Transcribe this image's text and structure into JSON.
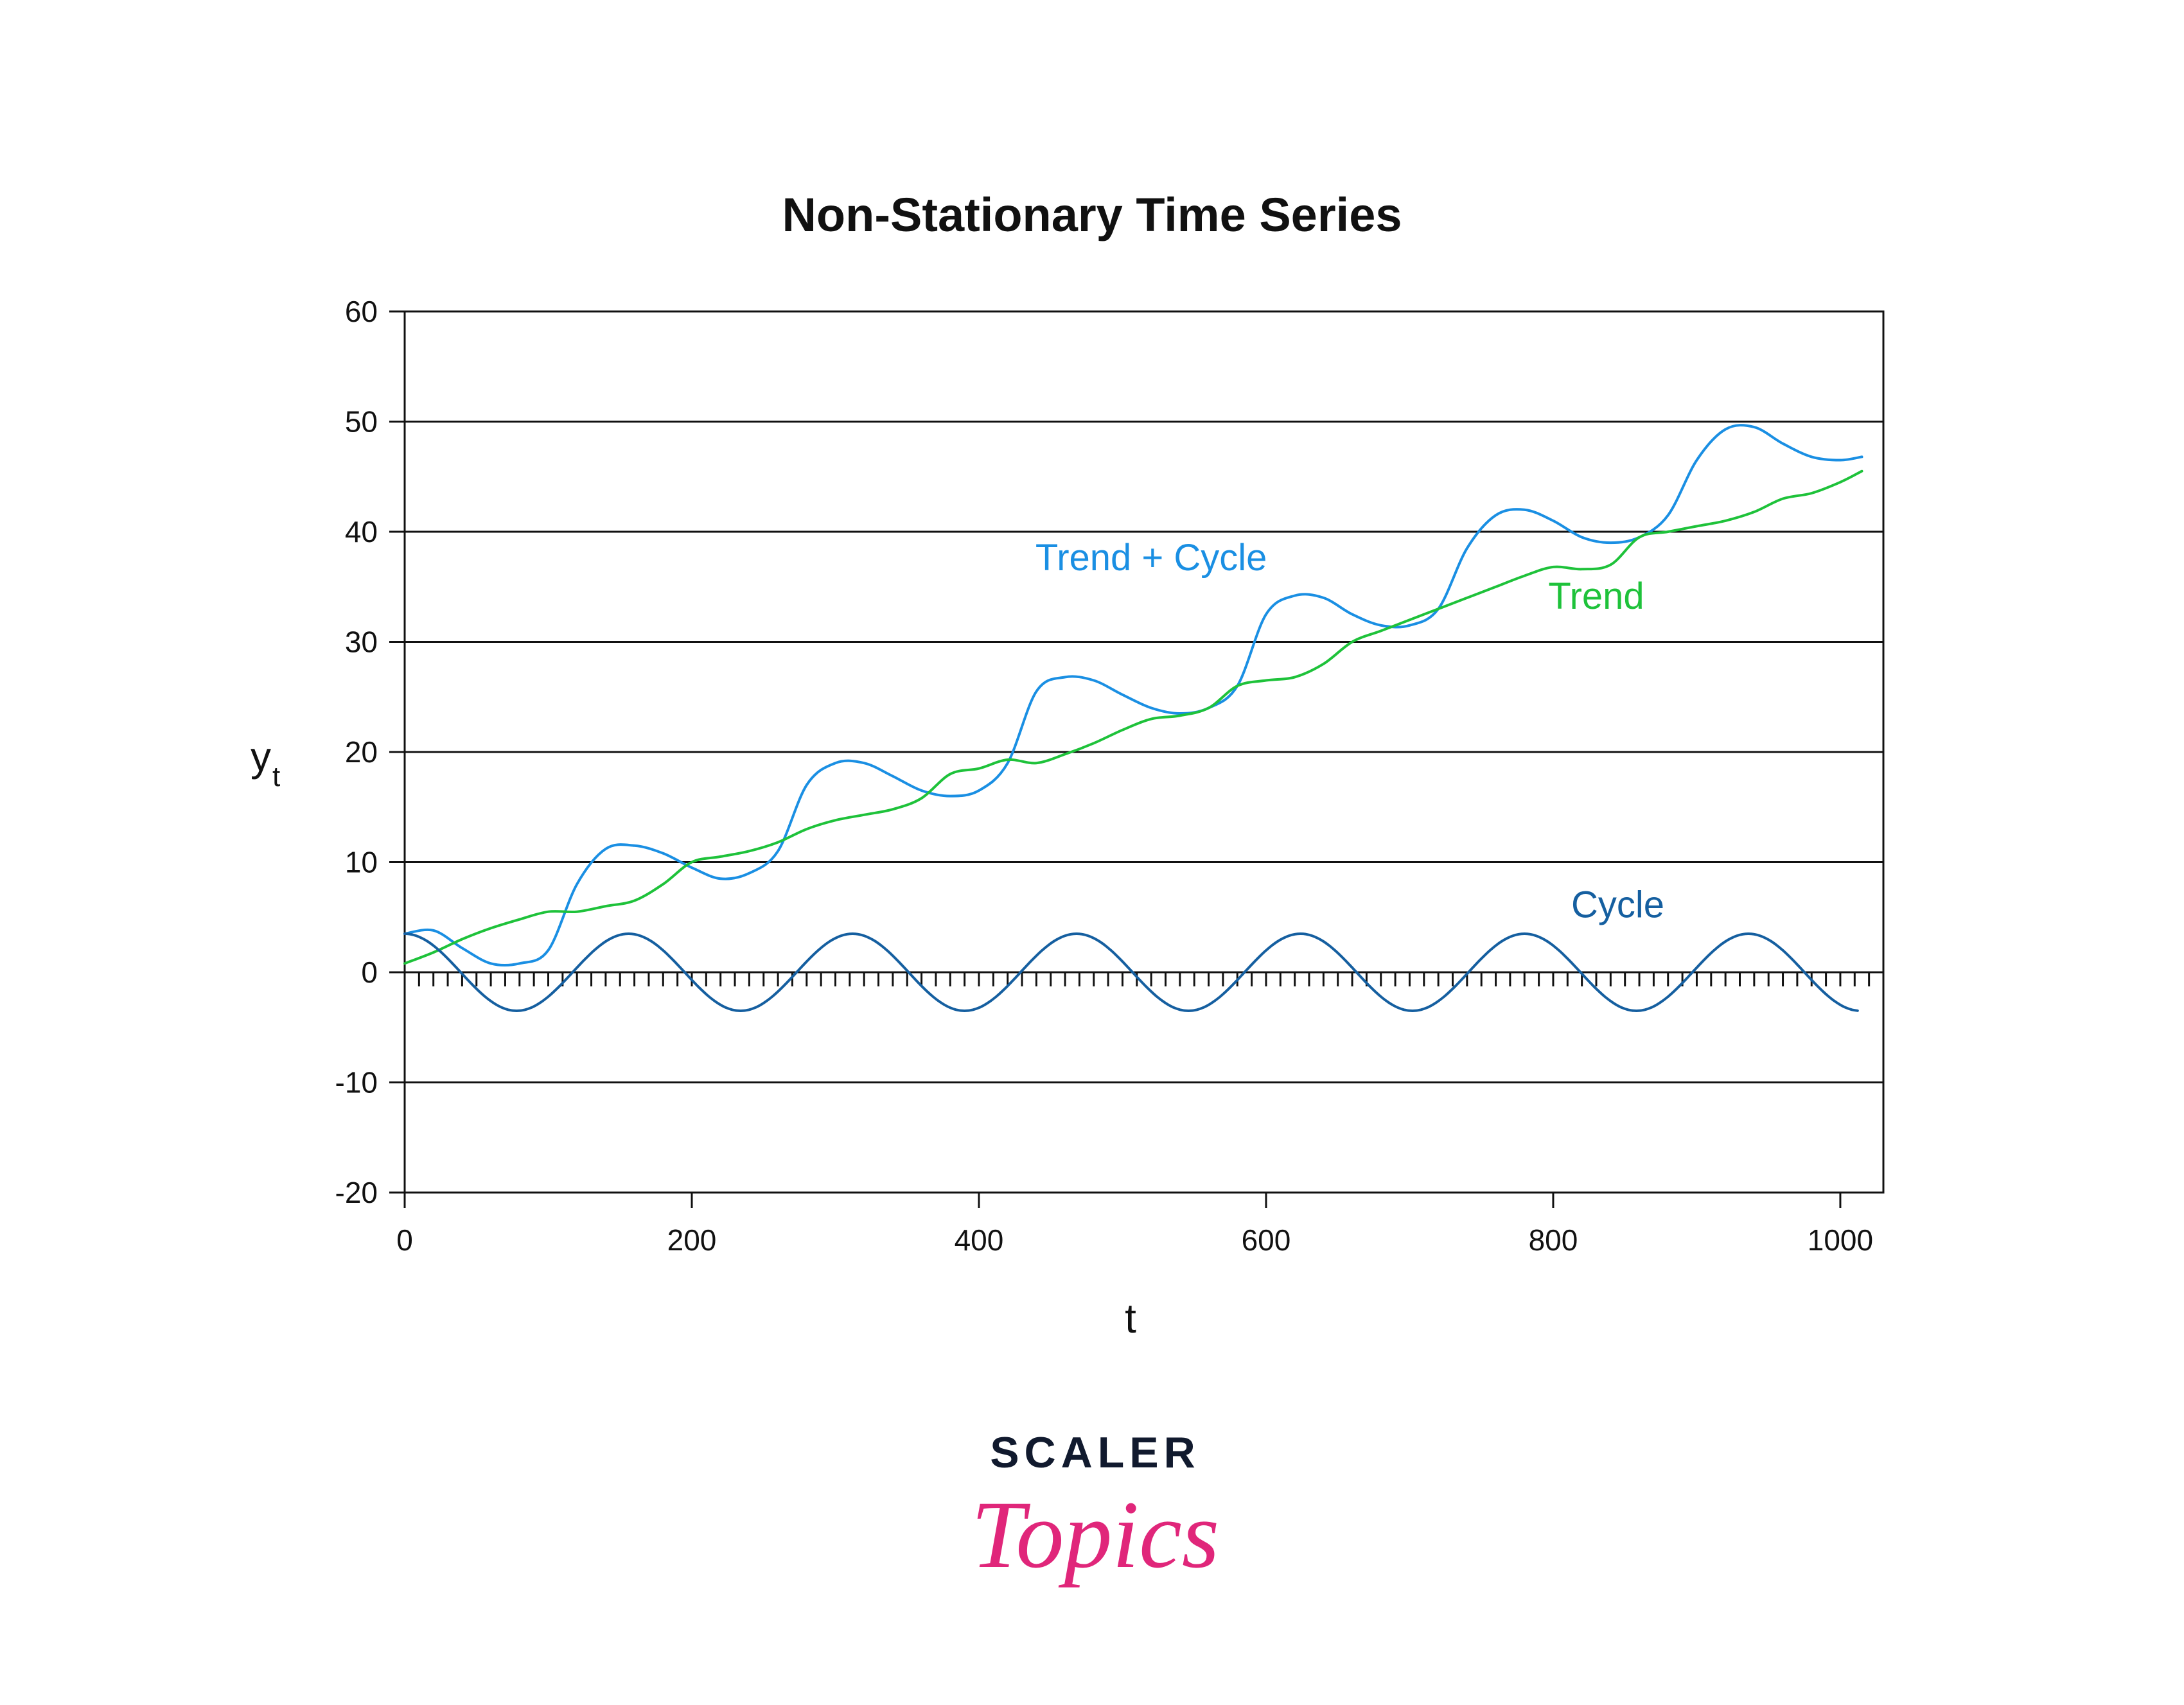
{
  "chart_data": {
    "type": "line",
    "title": "Non-Stationary Time Series",
    "xlabel": "t",
    "ylabel": "y",
    "ylabel_subscript": "t",
    "xlim": [
      0,
      1030
    ],
    "ylim": [
      -20,
      60
    ],
    "x_ticks": [
      0,
      200,
      400,
      600,
      800,
      1000
    ],
    "y_ticks": [
      60,
      50,
      40,
      30,
      20,
      10,
      0,
      -10,
      -20
    ],
    "grid": "horizontal",
    "series": [
      {
        "name": "Trend + Cycle",
        "color": "#1a8fe3",
        "x": [
          0,
          20,
          40,
          60,
          80,
          100,
          120,
          140,
          160,
          180,
          200,
          220,
          240,
          260,
          280,
          300,
          320,
          340,
          360,
          380,
          400,
          420,
          440,
          460,
          480,
          500,
          520,
          540,
          560,
          580,
          600,
          620,
          640,
          660,
          680,
          700,
          720,
          740,
          760,
          780,
          800,
          820,
          840,
          860,
          880,
          900,
          920,
          940,
          960,
          980,
          1000,
          1015
        ],
        "y": [
          3.5,
          3.8,
          2.2,
          0.8,
          0.8,
          2.0,
          8.0,
          11.2,
          11.5,
          10.8,
          9.5,
          8.5,
          9.0,
          11.0,
          17.0,
          19.0,
          19.0,
          17.8,
          16.5,
          16.0,
          16.5,
          19.0,
          25.5,
          26.8,
          26.5,
          25.2,
          24.0,
          23.5,
          24.0,
          26.0,
          32.5,
          34.2,
          34.0,
          32.5,
          31.5,
          31.5,
          33.0,
          38.5,
          41.5,
          42.0,
          41.0,
          39.5,
          39.0,
          39.5,
          41.5,
          46.5,
          49.3,
          49.5,
          48.0,
          46.8,
          46.5,
          46.8
        ]
      },
      {
        "name": "Trend",
        "color": "#1ec23a",
        "x": [
          0,
          20,
          40,
          60,
          80,
          100,
          120,
          140,
          160,
          180,
          200,
          220,
          240,
          260,
          280,
          300,
          320,
          340,
          360,
          380,
          400,
          420,
          440,
          460,
          480,
          500,
          520,
          540,
          560,
          580,
          600,
          620,
          640,
          660,
          680,
          700,
          720,
          740,
          760,
          780,
          800,
          820,
          840,
          860,
          880,
          900,
          920,
          940,
          960,
          980,
          1000,
          1015
        ],
        "y": [
          0.8,
          1.8,
          3.0,
          4.0,
          4.8,
          5.5,
          5.5,
          6.0,
          6.5,
          8.0,
          10.0,
          10.5,
          11.0,
          11.8,
          13.0,
          13.8,
          14.3,
          14.8,
          15.8,
          18.0,
          18.5,
          19.3,
          19.0,
          19.8,
          20.8,
          22.0,
          23.0,
          23.3,
          24.0,
          26.0,
          26.5,
          26.8,
          28.0,
          30.0,
          31.0,
          32.0,
          33.0,
          34.0,
          35.0,
          36.0,
          36.8,
          36.6,
          37.0,
          39.5,
          40.0,
          40.5,
          41.0,
          41.8,
          43.0,
          43.5,
          44.5,
          45.5
        ]
      },
      {
        "name": "Cycle",
        "color": "#155fa0",
        "amplitude": 3.5,
        "period": 156,
        "x": [
          0,
          1015
        ]
      }
    ],
    "annotations": [
      {
        "text": "Trend + Cycle",
        "x": 520,
        "y": 36.5,
        "color": "#1a8fe3"
      },
      {
        "text": "Trend",
        "x": 830,
        "y": 33,
        "color": "#1ec23a"
      },
      {
        "text": "Cycle",
        "x": 845,
        "y": 5,
        "color": "#155fa0"
      }
    ]
  },
  "logo": {
    "top": "SCALER",
    "bottom": "Topics"
  }
}
